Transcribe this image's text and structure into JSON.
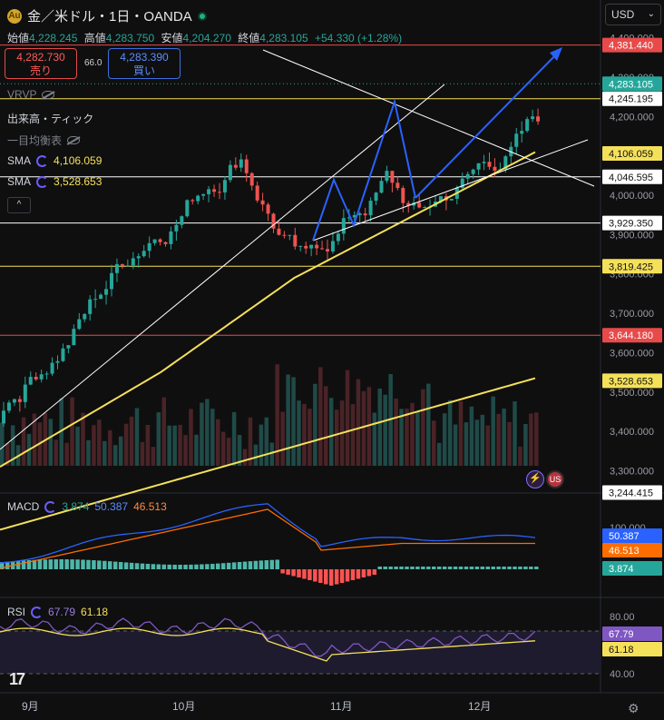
{
  "header": {
    "symbol": "金／米ドル・1日・OANDA",
    "open_label": "始値",
    "open": "4,228.245",
    "high_label": "高値",
    "high": "4,283.750",
    "low_label": "安値",
    "low": "4,204.270",
    "close_label": "終値",
    "close": "4,283.105",
    "change": "+54.330 (+1.28%)"
  },
  "trade": {
    "sell_price": "4,282.730",
    "sell_label": "売り",
    "spread": "66.0",
    "buy_price": "4,283.390",
    "buy_label": "買い"
  },
  "indicators": {
    "vrvp": "VRVP",
    "volume": "出来高・ティック",
    "ichimoku": "一目均衡表",
    "sma1_label": "SMA",
    "sma1_value": "4,106.059",
    "sma2_label": "SMA",
    "sma2_value": "3,528.653",
    "collapse_glyph": "^"
  },
  "currency_select": {
    "value": "USD"
  },
  "price_axis": {
    "ticks": [
      "4,400.000",
      "4,300.000",
      "4,200.000",
      "4,000.000",
      "3,900.000",
      "3,800.000",
      "3,700.000",
      "3,600.000",
      "3,500.000",
      "3,400.000",
      "3,300.000"
    ],
    "labels": [
      {
        "text": "4,381.440",
        "bg": "#e84a4a",
        "fg": "#ffffff"
      },
      {
        "text": "4,283.105",
        "bg": "#26a69a",
        "fg": "#ffffff"
      },
      {
        "text": "4,245.195",
        "bg": "#ffffff",
        "fg": "#111111"
      },
      {
        "text": "4,106.059",
        "bg": "#f5e05a",
        "fg": "#111111"
      },
      {
        "text": "4,046.595",
        "bg": "#ffffff",
        "fg": "#111111"
      },
      {
        "text": "3,929.350",
        "bg": "#ffffff",
        "fg": "#111111"
      },
      {
        "text": "3,819.425",
        "bg": "#f5e05a",
        "fg": "#111111"
      },
      {
        "text": "3,644.180",
        "bg": "#e84a4a",
        "fg": "#ffffff"
      },
      {
        "text": "3,528.653",
        "bg": "#f5e05a",
        "fg": "#111111"
      },
      {
        "text": "3,244.415",
        "bg": "#ffffff",
        "fg": "#111111"
      }
    ]
  },
  "macd": {
    "label": "MACD",
    "v1": "3.874",
    "v2": "50.387",
    "v3": "46.513",
    "axis_tick": "100.000",
    "axis_labels": [
      {
        "text": "50.387",
        "bg": "#2962ff",
        "fg": "#ffffff"
      },
      {
        "text": "46.513",
        "bg": "#ff6d00",
        "fg": "#ffffff"
      },
      {
        "text": "3.874",
        "bg": "#26a69a",
        "fg": "#ffffff"
      }
    ]
  },
  "rsi": {
    "label": "RSI",
    "v1": "67.79",
    "v2": "61.18",
    "ticks": [
      "80.00",
      "40.00"
    ],
    "axis_labels": [
      {
        "text": "67.79",
        "bg": "#7e57c2",
        "fg": "#ffffff"
      },
      {
        "text": "61.18",
        "bg": "#f5e05a",
        "fg": "#111111"
      }
    ]
  },
  "time_axis": [
    "9月",
    "10月",
    "11月",
    "12月"
  ],
  "colors": {
    "up": "#26a69a",
    "down": "#ef5350",
    "sma_yellow": "#f5e05a",
    "macd_blue": "#2962ff",
    "signal_orange": "#ff6d00",
    "rsi_purple": "#7e57c2"
  },
  "icons": {
    "logo": "tradingview-logo-icon",
    "settings": "gear-icon",
    "economic_event": "us-flag-icon",
    "bolt": "lightning-icon"
  },
  "logo_text": "17"
}
